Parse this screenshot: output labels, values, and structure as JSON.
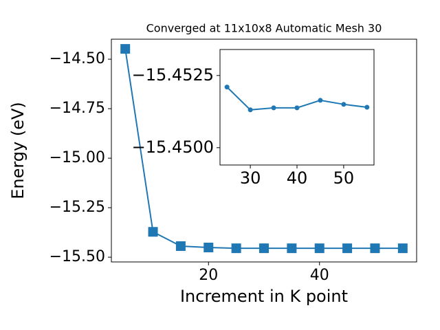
{
  "chart_data": [
    {
      "type": "line",
      "title": "Converged at 11x10x8 Automatic Mesh 30",
      "x_label": "Increment in K point",
      "y_label": "Energy (eV)",
      "x": [
        5,
        10,
        15,
        20,
        25,
        30,
        35,
        40,
        45,
        50,
        55
      ],
      "values": [
        -14.448,
        -15.372,
        -15.444,
        -15.451,
        -15.455,
        -15.455,
        -15.455,
        -15.455,
        -15.455,
        -15.455,
        -15.455
      ],
      "color": "#1f77b4",
      "marker": "square",
      "xlim": [
        2.5,
        57.5
      ],
      "ylim": [
        -15.524,
        -14.399
      ],
      "xticks": [
        20,
        40
      ],
      "yticks": [
        {
          "value": -14.5,
          "label": "−14.50"
        },
        {
          "value": -14.75,
          "label": "−14.75"
        },
        {
          "value": -15.0,
          "label": "−15.00"
        },
        {
          "value": -15.25,
          "label": "−15.25"
        },
        {
          "value": -15.5,
          "label": "−15.50"
        }
      ]
    },
    {
      "type": "line",
      "x": [
        25,
        30,
        35,
        40,
        45,
        50,
        55
      ],
      "values": [
        -15.4521,
        -15.45131,
        -15.45138,
        -15.45138,
        -15.45164,
        -15.4515,
        -15.4514
      ],
      "color": "#1f77b4",
      "marker": "circle",
      "xlim": [
        23.5,
        56.5
      ],
      "ylim": [
        -15.4494,
        -15.4534
      ],
      "xticks": [
        30,
        40,
        50
      ],
      "yticks": [
        {
          "value": -15.4525,
          "label": "−15.4525"
        },
        {
          "value": -15.45,
          "label": "−15.4500"
        }
      ]
    }
  ]
}
